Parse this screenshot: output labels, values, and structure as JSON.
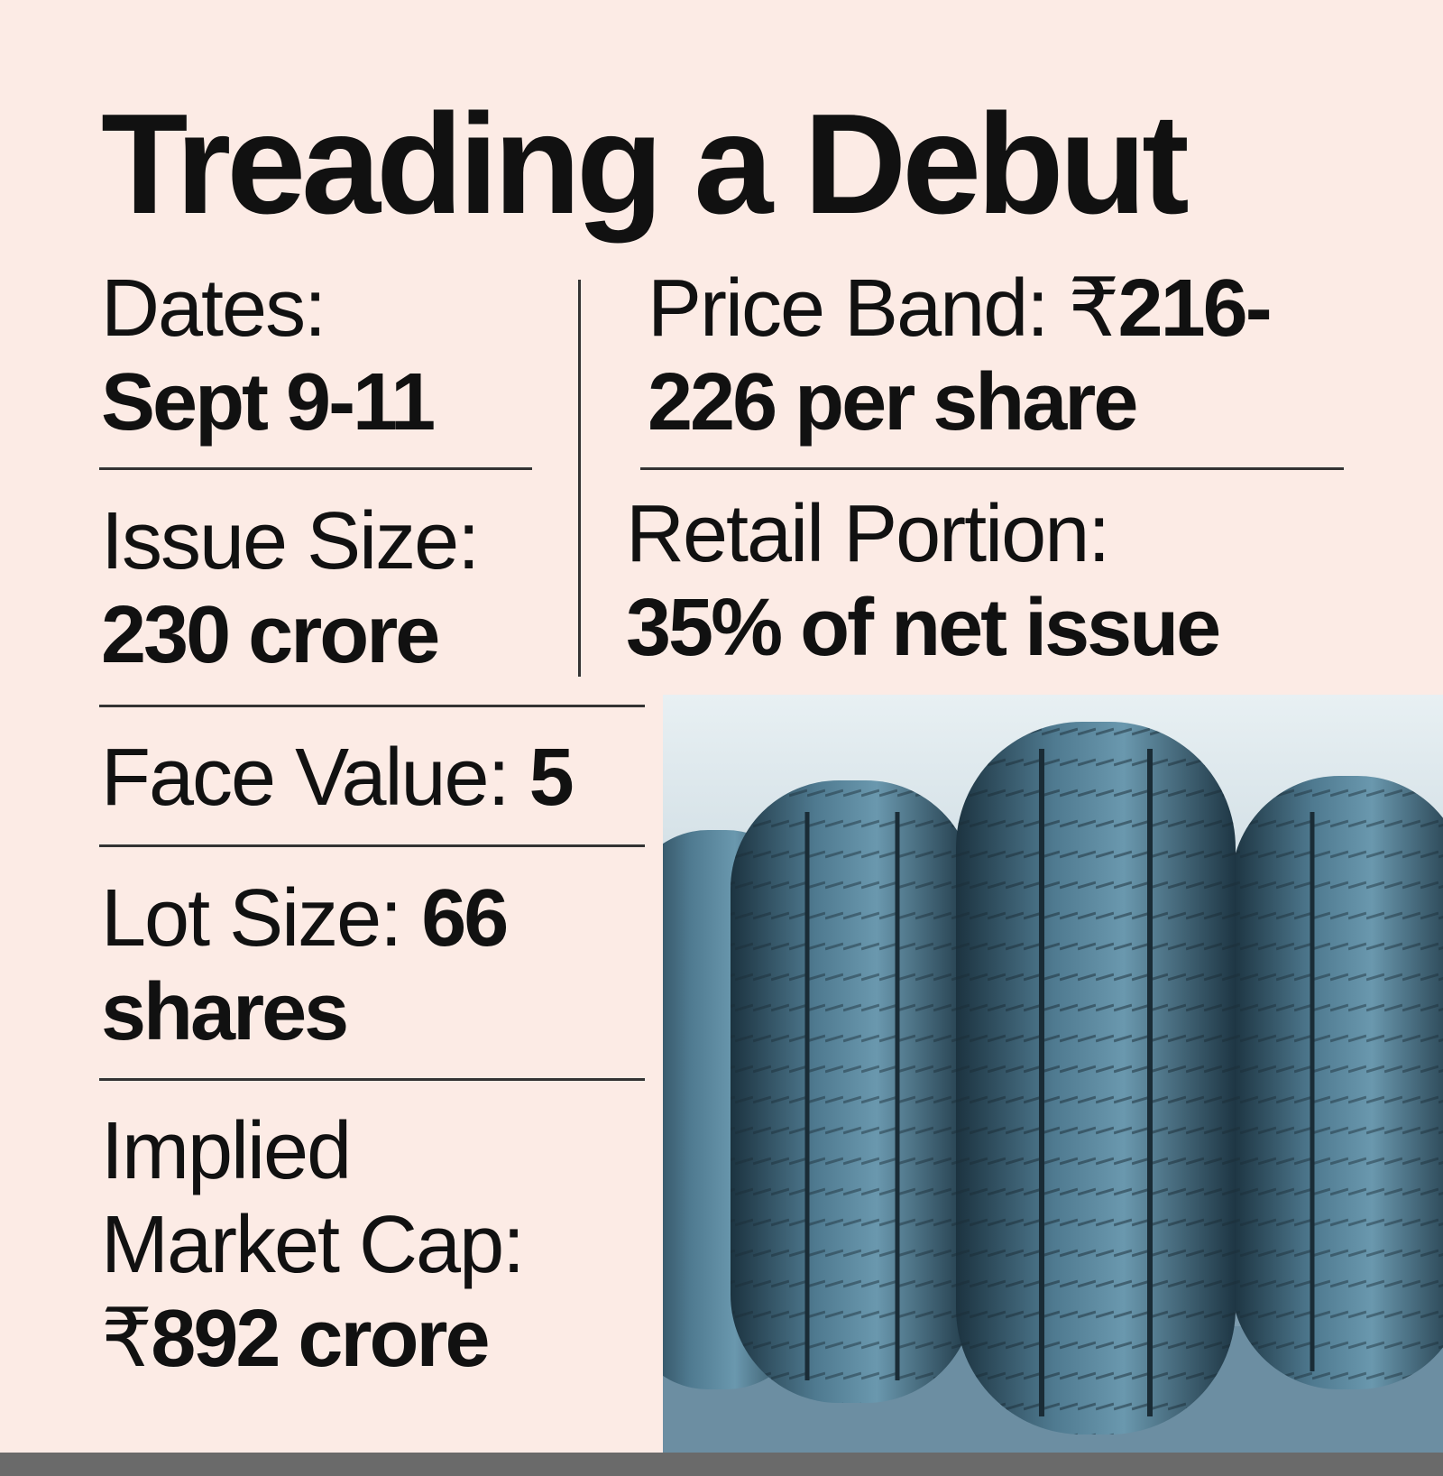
{
  "header": {
    "title": "Treading a Debut"
  },
  "items": [
    {
      "label": "Dates:",
      "value": "Sept 9-11"
    },
    {
      "label": "Price Band:",
      "currency": "₹",
      "value": "216-226 per share"
    },
    {
      "label": "Issue Size:",
      "value": "230 crore"
    },
    {
      "label": "Retail Portion:",
      "value": "35% of net issue"
    },
    {
      "label": "Face Value:",
      "value": "5"
    },
    {
      "label": "Lot Size:",
      "value": "66 shares"
    },
    {
      "label": "Implied Market Cap:",
      "currency": "₹",
      "value": "892 crore"
    }
  ]
}
